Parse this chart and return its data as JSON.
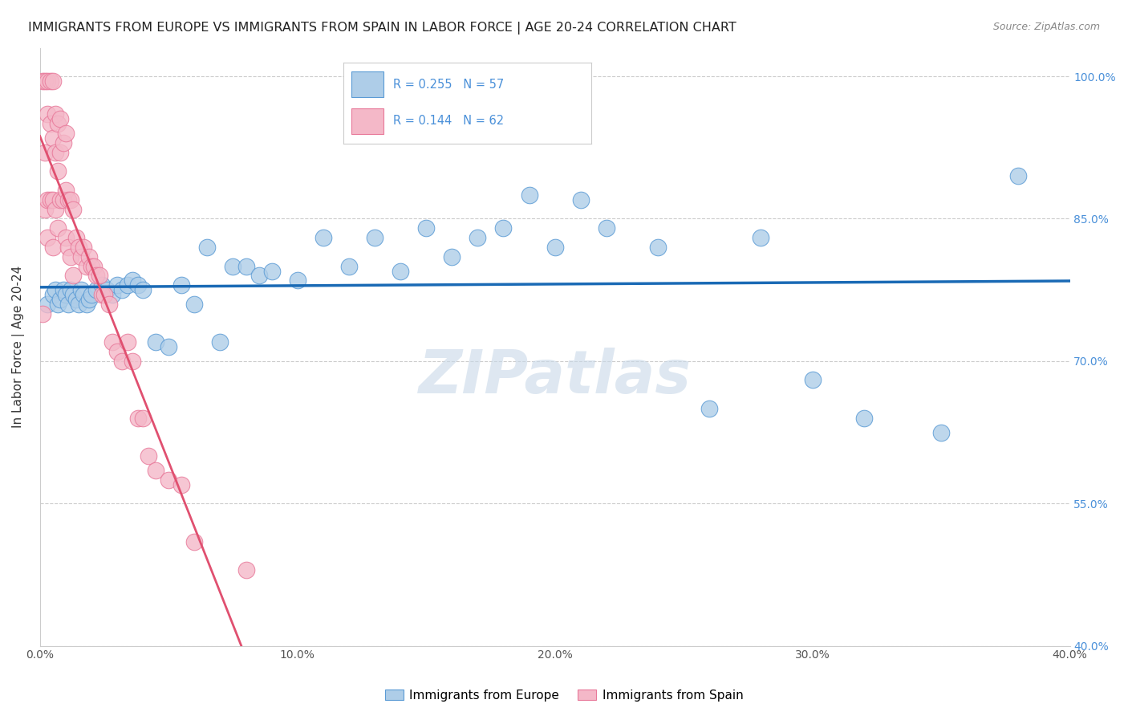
{
  "title": "IMMIGRANTS FROM EUROPE VS IMMIGRANTS FROM SPAIN IN LABOR FORCE | AGE 20-24 CORRELATION CHART",
  "source": "Source: ZipAtlas.com",
  "ylabel": "In Labor Force | Age 20-24",
  "xlim": [
    0.0,
    0.4
  ],
  "ylim": [
    0.4,
    1.03
  ],
  "xticks": [
    0.0,
    0.05,
    0.1,
    0.15,
    0.2,
    0.25,
    0.3,
    0.35,
    0.4
  ],
  "xticklabels": [
    "0.0%",
    "",
    "10.0%",
    "",
    "20.0%",
    "",
    "30.0%",
    "",
    "40.0%"
  ],
  "yticks": [
    0.4,
    0.55,
    0.7,
    0.85,
    1.0
  ],
  "yticklabels": [
    "40.0%",
    "55.0%",
    "70.0%",
    "85.0%",
    "100.0%"
  ],
  "blue_R": 0.255,
  "blue_N": 57,
  "pink_R": 0.144,
  "pink_N": 62,
  "blue_color": "#aecde8",
  "pink_color": "#f4b8c8",
  "blue_edge": "#5b9bd5",
  "pink_edge": "#e8799a",
  "blue_scatter_x": [
    0.003,
    0.005,
    0.006,
    0.007,
    0.008,
    0.009,
    0.01,
    0.011,
    0.012,
    0.013,
    0.014,
    0.015,
    0.016,
    0.017,
    0.018,
    0.019,
    0.02,
    0.022,
    0.024,
    0.026,
    0.028,
    0.03,
    0.032,
    0.034,
    0.036,
    0.038,
    0.04,
    0.045,
    0.05,
    0.055,
    0.06,
    0.065,
    0.07,
    0.075,
    0.08,
    0.085,
    0.09,
    0.1,
    0.11,
    0.12,
    0.13,
    0.14,
    0.15,
    0.16,
    0.17,
    0.18,
    0.19,
    0.2,
    0.21,
    0.22,
    0.24,
    0.26,
    0.28,
    0.3,
    0.32,
    0.35,
    0.38
  ],
  "blue_scatter_y": [
    0.76,
    0.77,
    0.775,
    0.76,
    0.765,
    0.775,
    0.77,
    0.76,
    0.775,
    0.77,
    0.765,
    0.76,
    0.775,
    0.77,
    0.76,
    0.765,
    0.77,
    0.775,
    0.78,
    0.775,
    0.77,
    0.78,
    0.775,
    0.78,
    0.785,
    0.78,
    0.775,
    0.72,
    0.715,
    0.78,
    0.76,
    0.82,
    0.72,
    0.8,
    0.8,
    0.79,
    0.795,
    0.785,
    0.83,
    0.8,
    0.83,
    0.795,
    0.84,
    0.81,
    0.83,
    0.84,
    0.875,
    0.82,
    0.87,
    0.84,
    0.82,
    0.65,
    0.83,
    0.68,
    0.64,
    0.625,
    0.895
  ],
  "pink_scatter_x": [
    0.001,
    0.001,
    0.002,
    0.002,
    0.002,
    0.003,
    0.003,
    0.003,
    0.003,
    0.004,
    0.004,
    0.004,
    0.005,
    0.005,
    0.005,
    0.005,
    0.006,
    0.006,
    0.006,
    0.007,
    0.007,
    0.007,
    0.008,
    0.008,
    0.008,
    0.009,
    0.009,
    0.01,
    0.01,
    0.01,
    0.011,
    0.011,
    0.012,
    0.012,
    0.013,
    0.013,
    0.014,
    0.015,
    0.016,
    0.017,
    0.018,
    0.019,
    0.02,
    0.021,
    0.022,
    0.023,
    0.024,
    0.025,
    0.027,
    0.028,
    0.03,
    0.032,
    0.034,
    0.036,
    0.038,
    0.04,
    0.042,
    0.045,
    0.05,
    0.055,
    0.06,
    0.08
  ],
  "pink_scatter_y": [
    0.995,
    0.75,
    0.995,
    0.92,
    0.86,
    0.995,
    0.96,
    0.87,
    0.83,
    0.995,
    0.95,
    0.87,
    0.995,
    0.935,
    0.87,
    0.82,
    0.96,
    0.92,
    0.86,
    0.95,
    0.9,
    0.84,
    0.955,
    0.92,
    0.87,
    0.93,
    0.87,
    0.94,
    0.88,
    0.83,
    0.87,
    0.82,
    0.87,
    0.81,
    0.86,
    0.79,
    0.83,
    0.82,
    0.81,
    0.82,
    0.8,
    0.81,
    0.8,
    0.8,
    0.79,
    0.79,
    0.77,
    0.77,
    0.76,
    0.72,
    0.71,
    0.7,
    0.72,
    0.7,
    0.64,
    0.64,
    0.6,
    0.585,
    0.575,
    0.57,
    0.51,
    0.48
  ],
  "watermark_text": "ZIPatlas",
  "watermark_color": "#c8d8e8",
  "grid_color": "#cccccc",
  "right_axis_color": "#4a90d9",
  "blue_line_color": "#1a6ab5",
  "pink_line_color": "#e05070",
  "gray_line_color": "#bbbbbb"
}
